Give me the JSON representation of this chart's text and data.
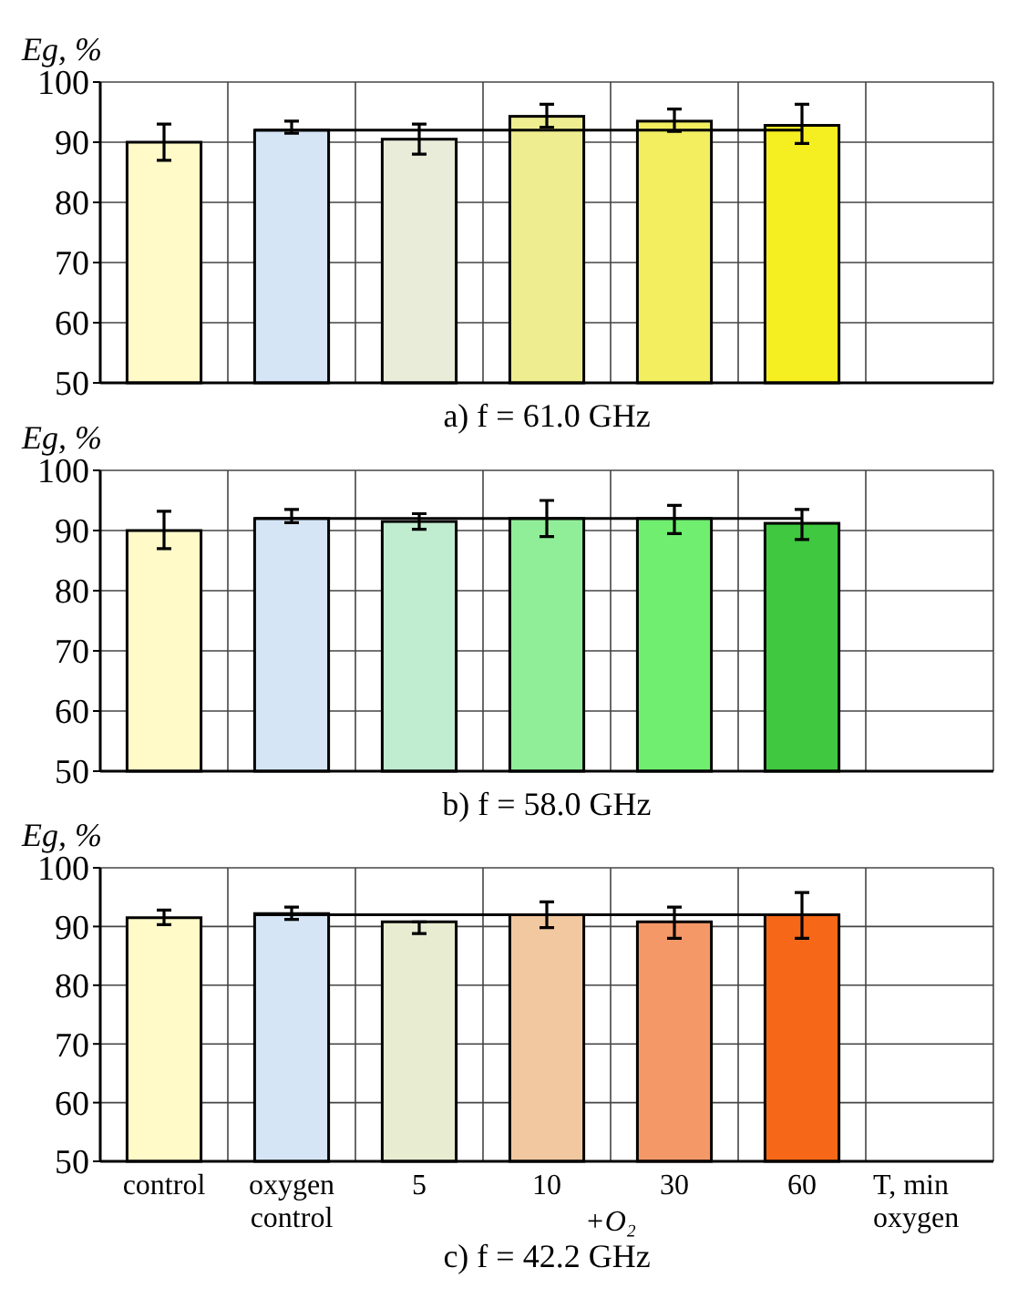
{
  "chart_data": [
    {
      "type": "bar",
      "title": "a) f = 61.0 GHz",
      "ylabel": "Eg, %",
      "categories": [
        null,
        null,
        null,
        null,
        null,
        null
      ],
      "values": [
        90,
        92,
        90.5,
        94.3,
        93.5,
        92.8
      ],
      "errors": [
        [
          87,
          93
        ],
        [
          91.5,
          93.5
        ],
        [
          88,
          93
        ],
        [
          92.5,
          96.3
        ],
        [
          91.8,
          95.5
        ],
        [
          89.8,
          96.3
        ]
      ],
      "colors": [
        "#fffac8",
        "#d5e5f5",
        "#e8ecd8",
        "#eeee90",
        "#f2ee60",
        "#f5ee20"
      ],
      "ylim": [
        50,
        100
      ],
      "yticks": [
        50,
        60,
        70,
        80,
        90,
        100
      ],
      "grid": true,
      "tick_labels": "y",
      "ref_lines": [
        {
          "axis": "y",
          "value": 92
        }
      ]
    },
    {
      "type": "bar",
      "title": "b) f = 58.0 GHz",
      "ylabel": "Eg, %",
      "categories": [
        null,
        null,
        null,
        null,
        null,
        null
      ],
      "values": [
        90,
        92,
        91.5,
        92,
        92,
        91.2
      ],
      "errors": [
        [
          87,
          93.2
        ],
        [
          91.3,
          93.5
        ],
        [
          90.2,
          92.8
        ],
        [
          89,
          95
        ],
        [
          89.5,
          94.2
        ],
        [
          88.5,
          93.5
        ]
      ],
      "colors": [
        "#fffac8",
        "#d5e5f5",
        "#c0ecd0",
        "#90ee98",
        "#70ee70",
        "#40c840"
      ],
      "ylim": [
        50,
        100
      ],
      "yticks": [
        50,
        60,
        70,
        80,
        90,
        100
      ],
      "grid": true,
      "tick_labels": "y",
      "ref_lines": [
        {
          "axis": "y",
          "value": 92
        }
      ]
    },
    {
      "type": "bar",
      "title": "c) f = 42.2 GHz",
      "ylabel": "Eg, %",
      "categories": [
        "control",
        "oxygen control",
        "5",
        "10",
        "30",
        "60"
      ],
      "values": [
        91.5,
        92.2,
        90.8,
        92,
        90.8,
        92
      ],
      "errors": [
        [
          90.3,
          92.8
        ],
        [
          91.2,
          93.3
        ],
        [
          88.8,
          90.8
        ],
        [
          89.8,
          94.2
        ],
        [
          88,
          93.3
        ],
        [
          88,
          95.8
        ]
      ],
      "colors": [
        "#fffac8",
        "#d5e5f5",
        "#e8ecd0",
        "#f2c8a0",
        "#f49868",
        "#f66818"
      ],
      "ylim": [
        50,
        100
      ],
      "yticks": [
        50,
        60,
        70,
        80,
        90,
        100
      ],
      "grid": true,
      "ref_lines": [
        {
          "axis": "y",
          "value": 92
        }
      ],
      "annotations": [
        "+O₂",
        "T, min",
        "oxygen"
      ]
    }
  ]
}
